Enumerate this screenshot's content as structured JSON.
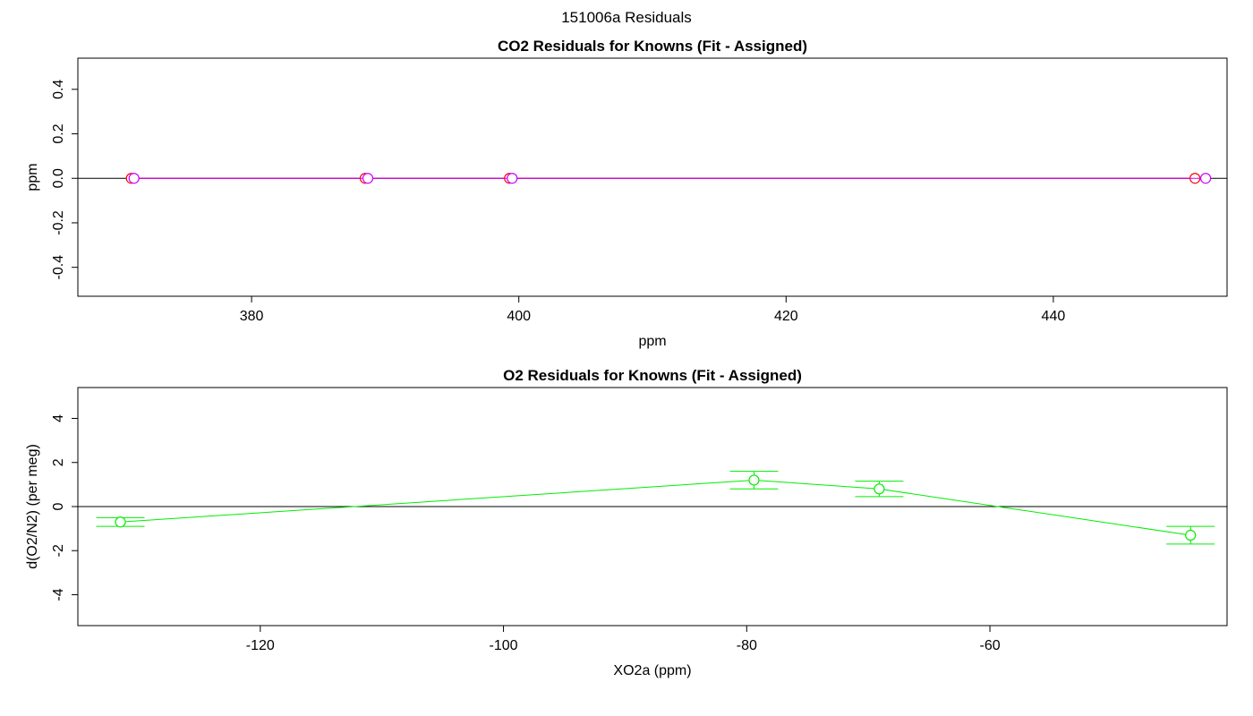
{
  "page_title": "151006a  Residuals",
  "chart_data": [
    {
      "type": "scatter",
      "title": "CO2 Residuals for Knowns (Fit - Assigned)",
      "xlabel": "ppm",
      "ylabel": "ppm",
      "xlim": [
        367.0,
        453.0
      ],
      "ylim": [
        -0.53,
        0.54
      ],
      "xticks": [
        380,
        400,
        420,
        440
      ],
      "yticks": [
        -0.4,
        -0.2,
        0.0,
        0.2,
        0.4
      ],
      "xtick_labels": [
        "380",
        "400",
        "420",
        "440"
      ],
      "ytick_labels": [
        "-0.4",
        "-0.2",
        "0.0",
        "0.2",
        "0.4"
      ],
      "zero_line": 0,
      "series": [
        {
          "color": "#ff0000",
          "x": [
            371.0,
            388.5,
            399.3,
            450.6
          ],
          "y": [
            0.0,
            0.0,
            0.0,
            0.0
          ]
        },
        {
          "color": "#cc00ff",
          "x": [
            371.2,
            388.7,
            399.5,
            451.4
          ],
          "y": [
            0.0,
            0.0,
            0.0,
            0.0
          ]
        }
      ]
    },
    {
      "type": "line",
      "title": "O2 Residuals for Knowns (Fit - Assigned)",
      "xlabel": "XO2a (ppm)",
      "ylabel": "d(O2/N2) (per meg)",
      "xlim": [
        -135.0,
        -40.5
      ],
      "ylim": [
        -5.4,
        5.4
      ],
      "xticks": [
        -120,
        -100,
        -80,
        -60
      ],
      "yticks": [
        -4,
        -2,
        0,
        2,
        4
      ],
      "xtick_labels": [
        "-120",
        "-100",
        "-80",
        "-60"
      ],
      "ytick_labels": [
        "-4",
        "-2",
        "0",
        "2",
        "4"
      ],
      "zero_line": 0,
      "series": [
        {
          "color": "#00ee00",
          "x": [
            -131.5,
            -79.4,
            -69.1,
            -43.5
          ],
          "y": [
            -0.7,
            1.2,
            0.8,
            -1.3
          ],
          "err": [
            0.2,
            0.4,
            0.35,
            0.4
          ]
        }
      ]
    }
  ]
}
